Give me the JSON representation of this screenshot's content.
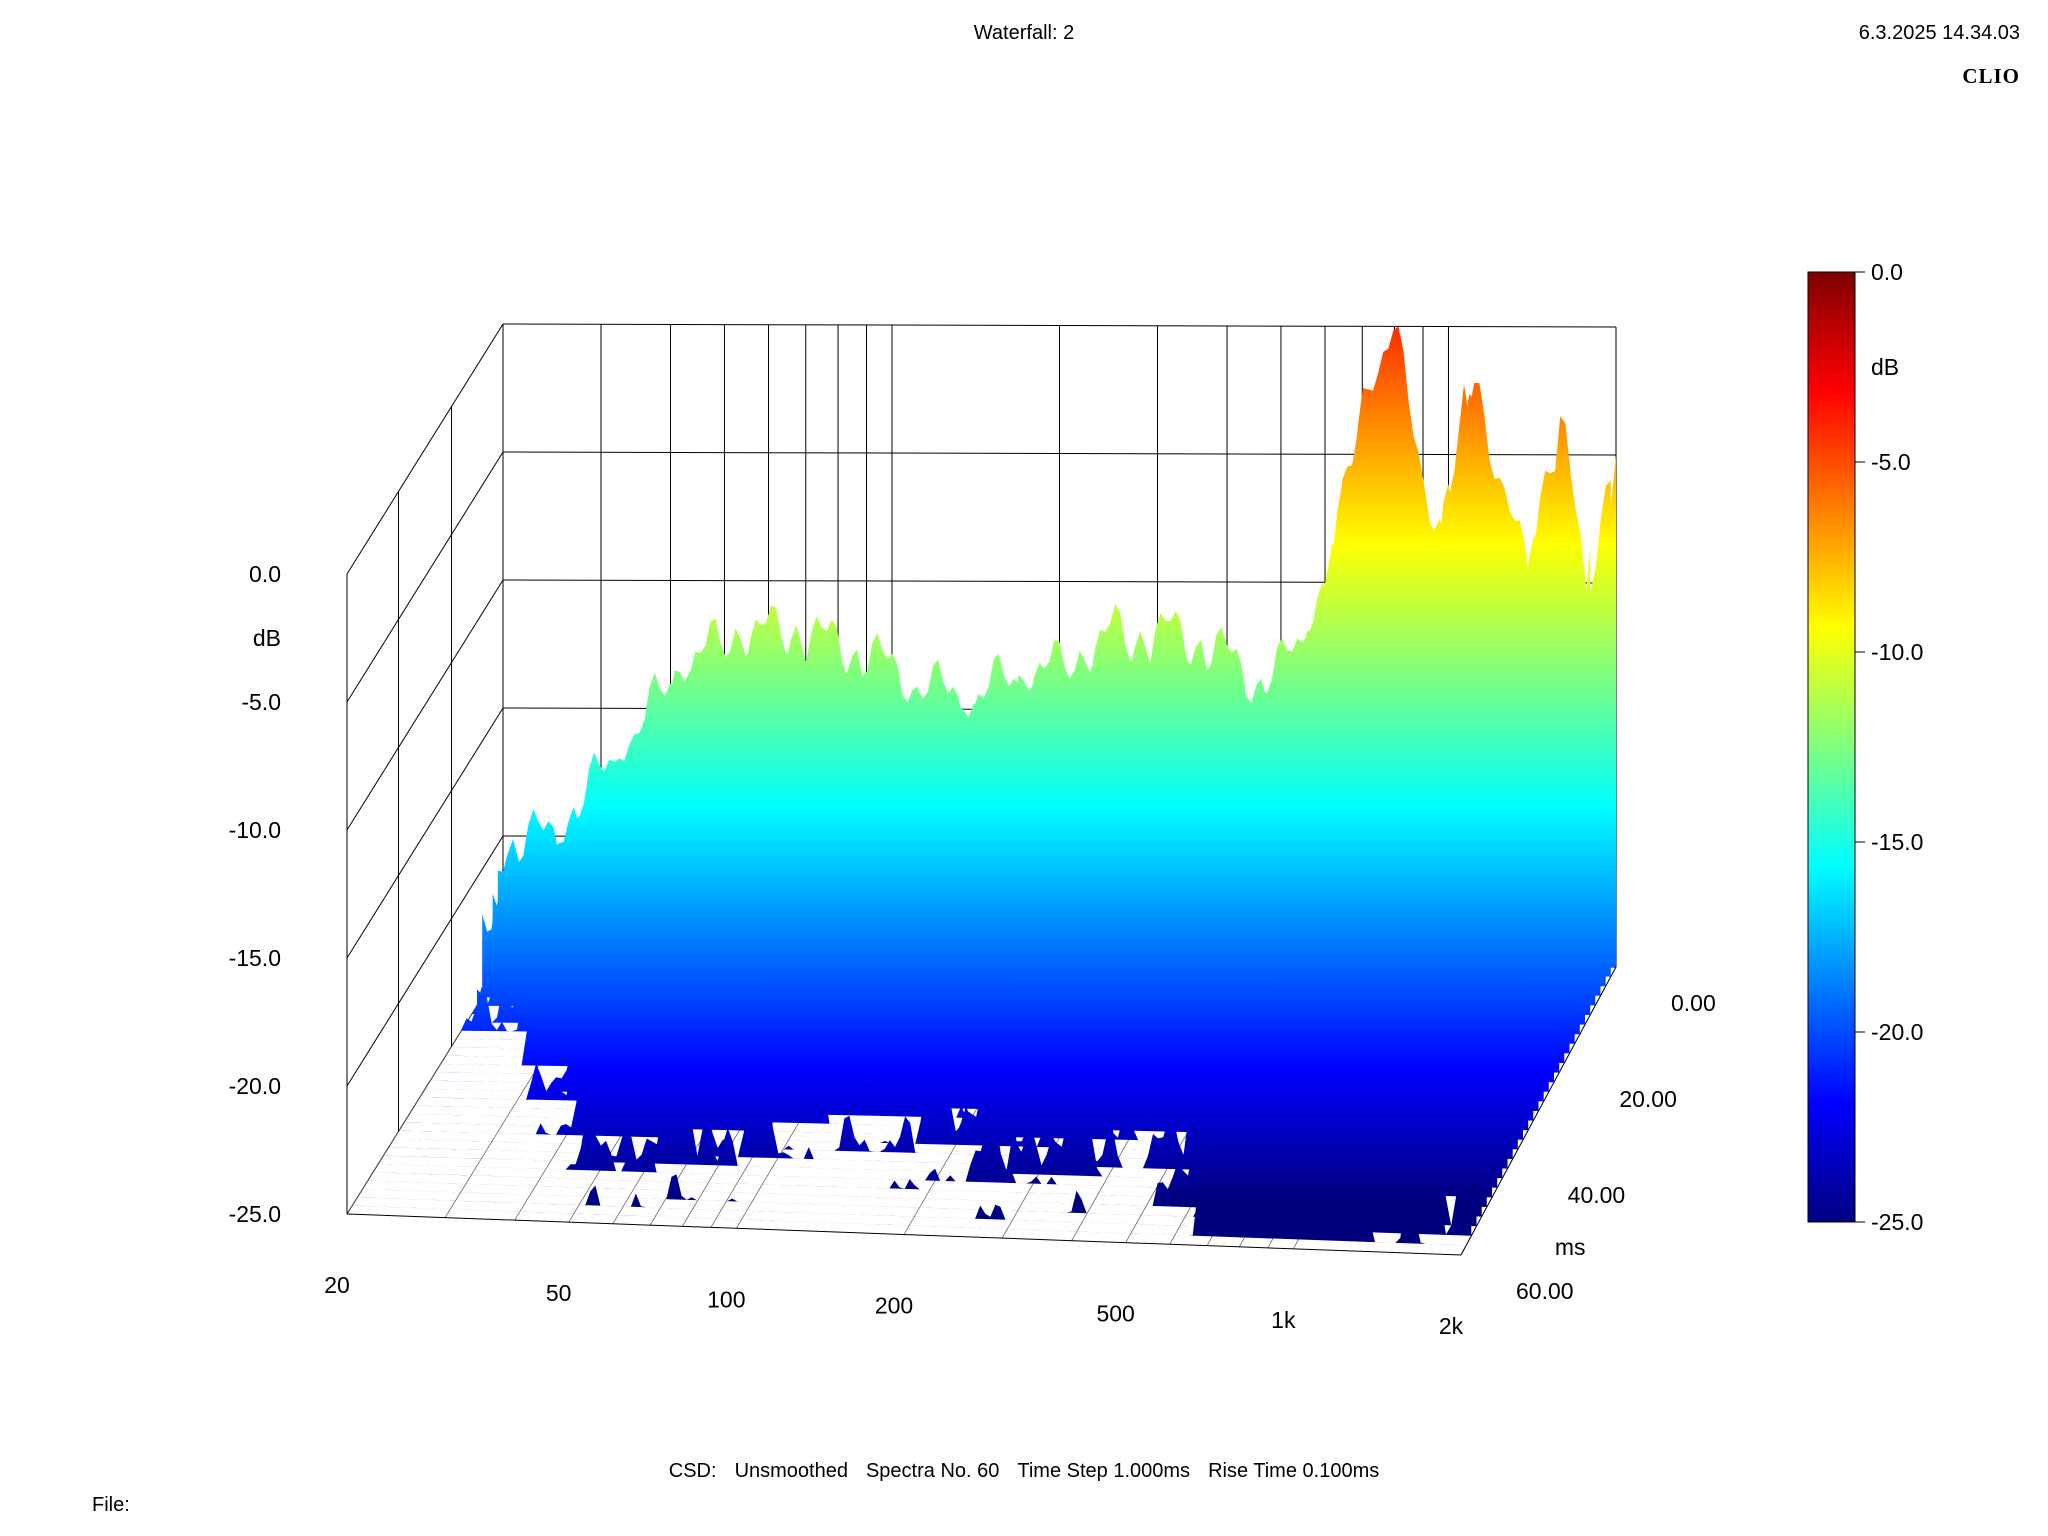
{
  "header": {
    "title": "Waterfall: 2",
    "datetime": "6.3.2025 14.34.03",
    "brand": "CLIO"
  },
  "footer": {
    "csd_label": "CSD:",
    "smoothing": "Unsmoothed",
    "spectra": "Spectra No. 60",
    "time_step": "Time Step 1.000ms",
    "rise_time": "Rise Time 0.100ms",
    "file_label": "File:"
  },
  "chart_data": {
    "type": "waterfall",
    "title": "Waterfall: 2",
    "x_axis": {
      "label": "",
      "scale": "log",
      "range": [
        20,
        2000
      ],
      "ticks": [
        20,
        50,
        100,
        200,
        500,
        1000,
        2000
      ],
      "tick_labels": [
        "20",
        "50",
        "100",
        "200",
        "500",
        "1k",
        "2k"
      ]
    },
    "y_axis": {
      "label": "dB",
      "range": [
        -25,
        0
      ],
      "ticks": [
        0,
        -5,
        -10,
        -15,
        -20,
        -25
      ],
      "tick_labels": [
        "0.0",
        "-5.0",
        "-10.0",
        "-15.0",
        "-20.0",
        "-25.0"
      ]
    },
    "z_axis": {
      "label": "ms",
      "range": [
        0,
        60
      ],
      "ticks": [
        0,
        20,
        40,
        60
      ],
      "tick_labels": [
        "0.00",
        "20.00",
        "40.00",
        "60.00"
      ]
    },
    "colorbar": {
      "label": "dB",
      "range": [
        -25,
        0
      ],
      "ticks": [
        0,
        -5,
        -10,
        -15,
        -20,
        -25
      ],
      "tick_labels": [
        "0.0",
        "-5.0",
        "-10.0",
        "-15.0",
        "-20.0",
        "-25.0"
      ],
      "colormap": [
        "#00007f",
        "#0000ff",
        "#007fff",
        "#00ffff",
        "#7fff7f",
        "#ffff00",
        "#ff7f00",
        "#ff0000",
        "#7f0000"
      ]
    },
    "grid": true,
    "first_spectrum": {
      "time_ms": 0,
      "freq_hz": [
        20,
        22,
        25,
        28,
        32,
        36,
        40,
        45,
        50,
        56,
        63,
        71,
        80,
        90,
        100,
        112,
        125,
        140,
        160,
        180,
        200,
        225,
        250,
        280,
        315,
        355,
        400,
        450,
        500,
        560,
        630,
        710,
        800,
        900,
        1000,
        1120,
        1250,
        1400,
        1600,
        1800,
        2000
      ],
      "level_db": [
        -20.5,
        -20.2,
        -20.0,
        -18.5,
        -17.0,
        -15.5,
        -14.0,
        -13.0,
        -12.5,
        -12.2,
        -12.0,
        -12.3,
        -12.5,
        -13.0,
        -13.5,
        -14.0,
        -14.5,
        -14.5,
        -14.0,
        -13.5,
        -13.5,
        -13.0,
        -12.0,
        -12.5,
        -12.0,
        -12.5,
        -13.0,
        -14.0,
        -13.5,
        -12.0,
        -8.5,
        -2.5,
        -0.5,
        -5.5,
        -9.0,
        -1.0,
        -7.0,
        -9.5,
        -4.0,
        -11.5,
        -5.0
      ]
    },
    "spectra_count": 60,
    "decay": {
      "time_ms": [
        0,
        10,
        20,
        30,
        40,
        50,
        60
      ],
      "level_offset_db": [
        0,
        -3.5,
        -7.0,
        -10.0,
        -13.0,
        -15.5,
        -18.0
      ]
    }
  }
}
